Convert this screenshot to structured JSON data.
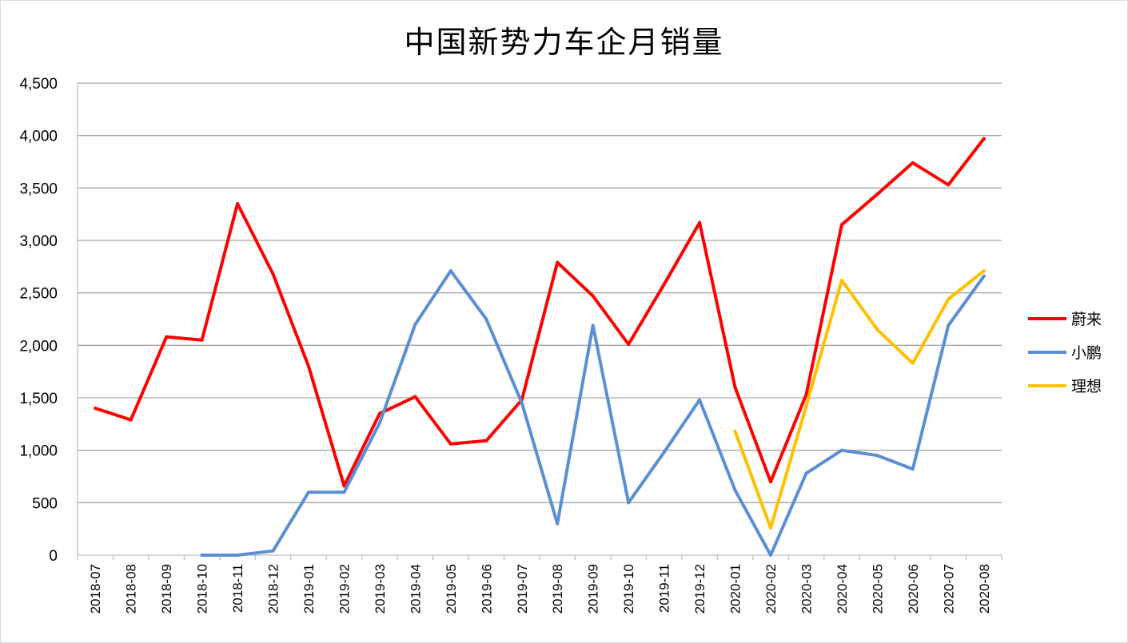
{
  "chart_data": {
    "type": "line",
    "title": "中国新势力车企月销量",
    "xlabel": "",
    "ylabel": "",
    "ylim": [
      0,
      4500
    ],
    "ytick_labels": [
      "0",
      "500",
      "1,000",
      "1,500",
      "2,000",
      "2,500",
      "3,000",
      "3,500",
      "4,000",
      "4,500"
    ],
    "categories": [
      "2018-07",
      "2018-08",
      "2018-09",
      "2018-10",
      "2018-11",
      "2018-12",
      "2019-01",
      "2019-02",
      "2019-03",
      "2019-04",
      "2019-05",
      "2019-06",
      "2019-07",
      "2019-08",
      "2019-09",
      "2019-10",
      "2019-11",
      "2019-12",
      "2020-01",
      "2020-02",
      "2020-03",
      "2020-04",
      "2020-05",
      "2020-06",
      "2020-07",
      "2020-08"
    ],
    "grid": true,
    "legend_position": "right",
    "series": [
      {
        "name": "蔚来",
        "color": "#ff0000",
        "values": [
          1400,
          1290,
          2080,
          2050,
          3350,
          2680,
          1800,
          660,
          1350,
          1510,
          1060,
          1090,
          1480,
          2790,
          2470,
          2010,
          2580,
          3170,
          1600,
          700,
          1530,
          3150,
          3440,
          3740,
          3530,
          3970
        ]
      },
      {
        "name": "小鹏",
        "color": "#5b8fd5",
        "values": [
          null,
          null,
          null,
          0,
          0,
          40,
          600,
          600,
          1260,
          2200,
          2710,
          2250,
          1450,
          300,
          2190,
          500,
          980,
          1480,
          620,
          0,
          780,
          1000,
          950,
          820,
          2190,
          2660
        ]
      },
      {
        "name": "理想",
        "color": "#ffc000",
        "values": [
          null,
          null,
          null,
          null,
          null,
          null,
          null,
          null,
          null,
          null,
          null,
          null,
          null,
          null,
          null,
          null,
          null,
          null,
          1180,
          260,
          1420,
          2620,
          2150,
          1830,
          2440,
          2710
        ]
      }
    ]
  }
}
